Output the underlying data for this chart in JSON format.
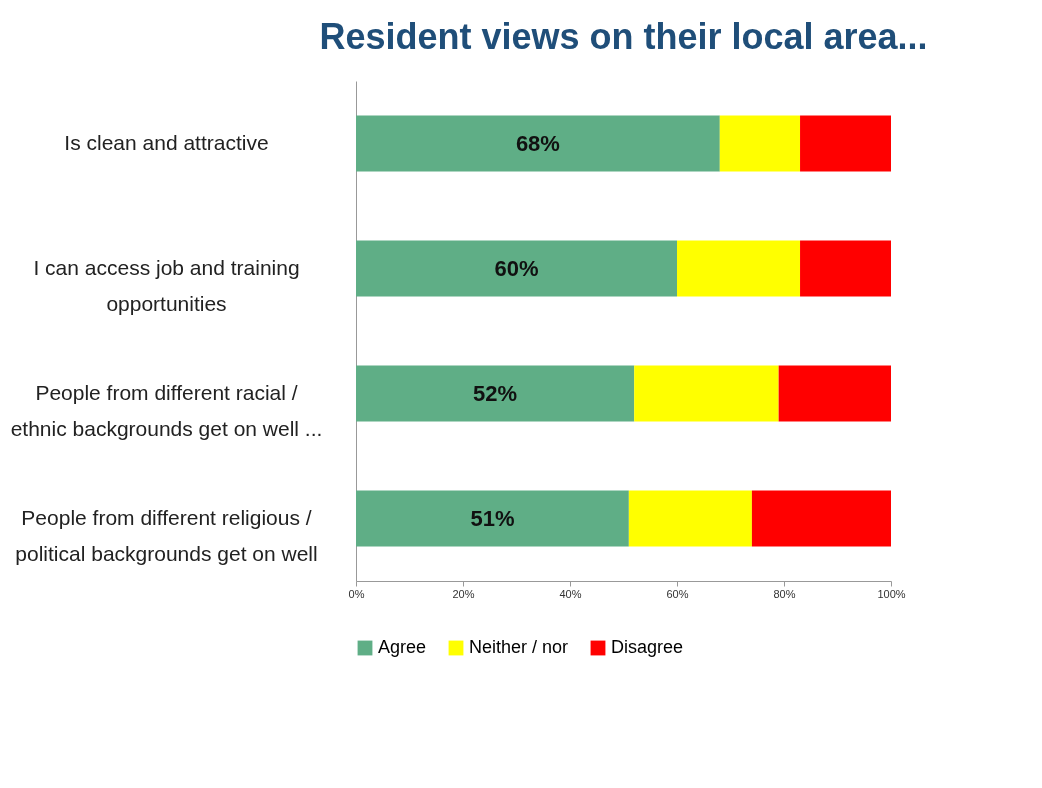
{
  "chart_data": {
    "type": "bar",
    "orientation": "horizontal",
    "stacked": true,
    "title": "Resident views on their local area...",
    "categories": [
      "Is clean and attractive",
      "I can access job and training\nopportunities",
      "People from different racial /\nethnic backgrounds get on well ...",
      "People from different religious /\npolitical backgrounds get on well"
    ],
    "series": [
      {
        "name": "Agree",
        "color": "#5fae86",
        "values": [
          68,
          60,
          52,
          51
        ],
        "value_labels": [
          "68%",
          "60%",
          "52%",
          "51%"
        ]
      },
      {
        "name": "Neither / nor",
        "color": "#ffff00",
        "values": [
          15,
          23,
          27,
          23
        ]
      },
      {
        "name": "Disagree",
        "color": "#ff0000",
        "values": [
          17,
          17,
          21,
          26
        ]
      }
    ],
    "xlim": [
      0,
      100
    ],
    "xticks": [
      {
        "value": 0,
        "label": "0%"
      },
      {
        "value": 20,
        "label": "20%"
      },
      {
        "value": 40,
        "label": "40%"
      },
      {
        "value": 60,
        "label": "60%"
      },
      {
        "value": 80,
        "label": "80%"
      },
      {
        "value": 100,
        "label": "100%"
      }
    ],
    "grid": false,
    "legend": "bottom"
  }
}
